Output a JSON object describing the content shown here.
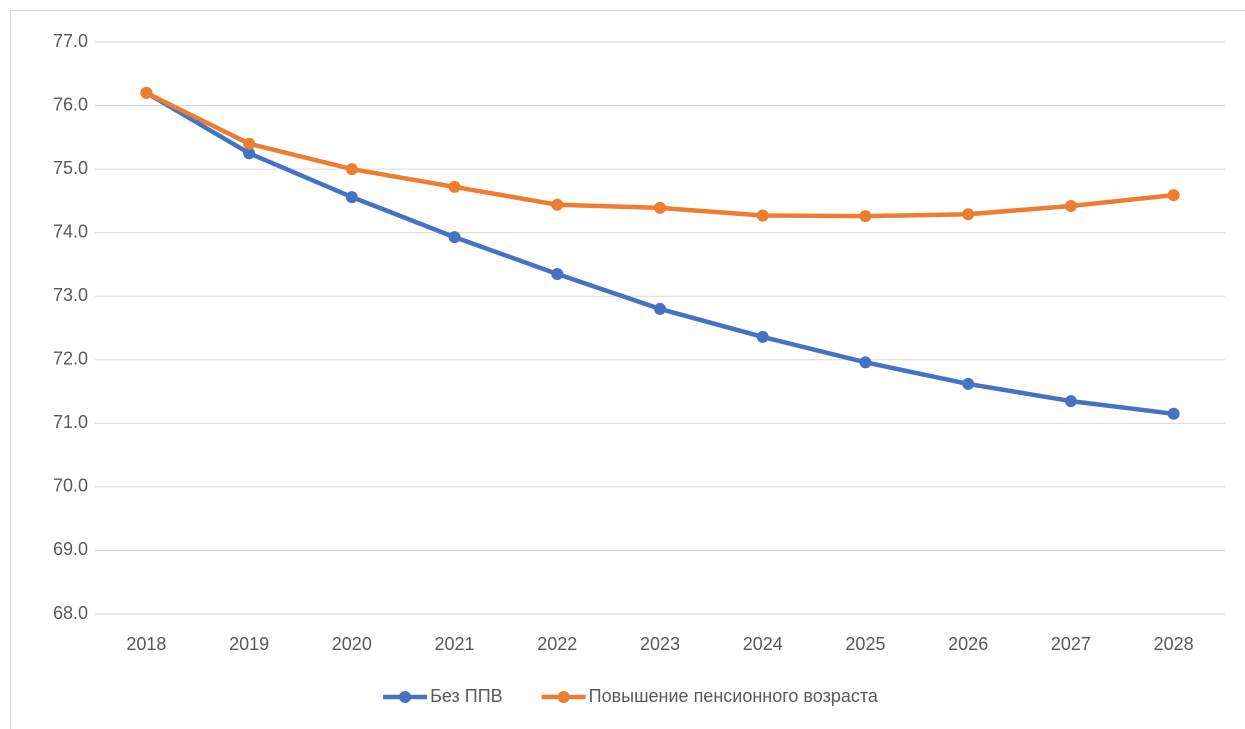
{
  "chart_data": {
    "type": "line",
    "categories": [
      "2018",
      "2019",
      "2020",
      "2021",
      "2022",
      "2023",
      "2024",
      "2025",
      "2026",
      "2027",
      "2028"
    ],
    "series": [
      {
        "name": "Без ППВ",
        "color": "#4472c4",
        "values": [
          76.2,
          75.25,
          74.56,
          73.93,
          73.35,
          72.8,
          72.36,
          71.96,
          71.62,
          71.35,
          71.15
        ]
      },
      {
        "name": "Повышение пенсионного возраста",
        "color": "#ed7d31",
        "values": [
          76.2,
          75.4,
          75.0,
          74.72,
          74.44,
          74.39,
          74.27,
          74.26,
          74.29,
          74.42,
          74.59
        ]
      }
    ],
    "ylim": [
      68,
      77
    ],
    "yticks": [
      {
        "value": 68,
        "label": "68.0"
      },
      {
        "value": 69,
        "label": "69.0"
      },
      {
        "value": 70,
        "label": "70.0"
      },
      {
        "value": 71,
        "label": "71.0"
      },
      {
        "value": 72,
        "label": "72.0"
      },
      {
        "value": 73,
        "label": "73.0"
      },
      {
        "value": 74,
        "label": "74.0"
      },
      {
        "value": 75,
        "label": "75.0"
      },
      {
        "value": 76,
        "label": "76.0"
      },
      {
        "value": 77,
        "label": "77.0"
      }
    ],
    "grid": true,
    "legend": "bottom"
  }
}
